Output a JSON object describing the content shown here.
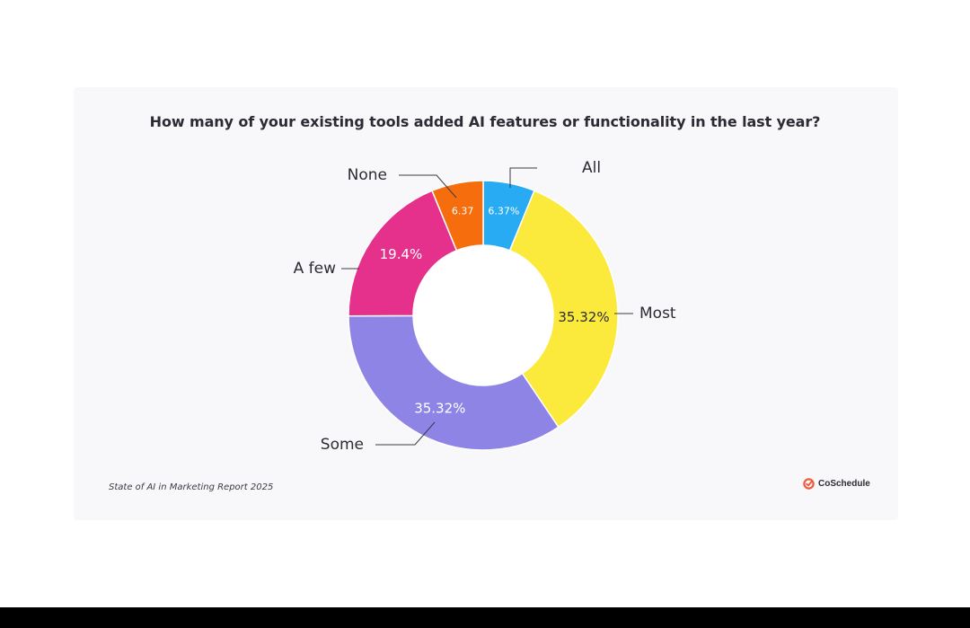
{
  "chart_data": {
    "type": "pie",
    "donut": true,
    "title": "How many of your existing tools added AI features or functionality in the last year?",
    "source": "State of AI in Marketing Report 2025",
    "slices": [
      {
        "label": "All",
        "value": 6.37,
        "value_label": "6.37%",
        "color": "#29abf4"
      },
      {
        "label": "Most",
        "value": 35.32,
        "value_label": "35.32%",
        "color": "#fbea3c"
      },
      {
        "label": "Some",
        "value": 35.32,
        "value_label": "35.32%",
        "color": "#8e84e6"
      },
      {
        "label": "A few",
        "value": 19.4,
        "value_label": "19.4%",
        "color": "#e6318c"
      },
      {
        "label": "None",
        "value": 6.37,
        "value_label": "6.37",
        "color": "#f66d0e"
      }
    ],
    "legend": "none"
  },
  "brand": {
    "name": "CoSchedule",
    "color": "#f15a3a"
  }
}
